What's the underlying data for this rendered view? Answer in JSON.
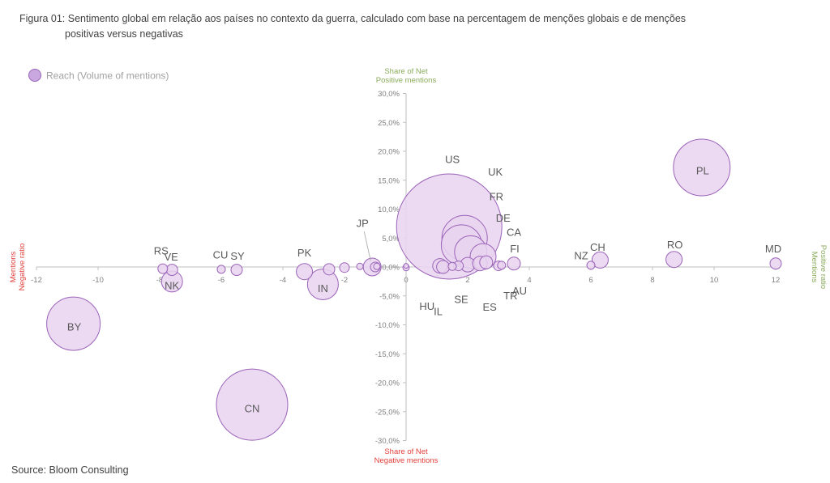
{
  "caption": {
    "line1": "Figura 01: Sentimento global em relação aos países no contexto da guerra, calculado com base na percentagem de menções globais e de menções",
    "line2": "positivas versus negativas"
  },
  "source": "Source: Bloom Consulting",
  "colors": {
    "bubble_fill": "#e9d3f0",
    "bubble_stroke": "#9a63b8",
    "axis": "#bfbfbf",
    "positive": "#8aab5b",
    "negative": "#e0403a"
  },
  "chart_data": {
    "type": "scatter",
    "legend": {
      "label": "Reach (Volume of mentions)",
      "placement": "top-left"
    },
    "axis_titles": {
      "top": [
        "Share of Net",
        "Positive mentions"
      ],
      "bottom": [
        "Share of Net",
        "Negative mentions"
      ],
      "left": [
        "Mentions",
        "Negative ratio"
      ],
      "right": [
        "Mentions",
        "Positive ratio"
      ]
    },
    "xlim": [
      -12,
      12
    ],
    "ylim": [
      -30,
      30
    ],
    "x_ticks": [
      -12,
      -10,
      -8,
      -6,
      -4,
      -2,
      0,
      2,
      4,
      6,
      8,
      10,
      12
    ],
    "x_tick_labels": [
      "-12",
      "-10",
      "-8",
      "-6",
      "-4",
      "-2",
      "0",
      "2",
      "4",
      "6",
      "8",
      "10",
      "12"
    ],
    "y_ticks": [
      30,
      25,
      20,
      15,
      10,
      5,
      0,
      -5,
      -10,
      -15,
      -20,
      -25,
      -30
    ],
    "y_tick_labels": [
      "30,0%",
      "25,0%",
      "20,0%",
      "15,0%",
      "10,0%",
      "5,0%",
      "0,0%",
      "-5,0%",
      "-10,0%",
      "-15,0%",
      "-20,0%",
      "-25,0%",
      "-30,0%"
    ],
    "points": [
      {
        "label": "US",
        "x": 1.4,
        "y": 7.0,
        "size": 65
      },
      {
        "label": "PL",
        "x": 9.6,
        "y": 17.2,
        "size": 35
      },
      {
        "label": "CN",
        "x": -5.0,
        "y": -23.8,
        "size": 44
      },
      {
        "label": "BY",
        "x": -10.8,
        "y": -9.8,
        "size": 33
      },
      {
        "label": "UK",
        "x": 1.9,
        "y": 5.0,
        "size": 28
      },
      {
        "label": "FR",
        "x": 1.8,
        "y": 3.8,
        "size": 25
      },
      {
        "label": "DE",
        "x": 2.1,
        "y": 2.6,
        "size": 20
      },
      {
        "label": "CA",
        "x": 2.5,
        "y": 1.8,
        "size": 16
      },
      {
        "label": "IN",
        "x": -2.7,
        "y": -3.0,
        "size": 19
      },
      {
        "label": "NK",
        "x": -7.6,
        "y": -2.5,
        "size": 13
      },
      {
        "label": "MD",
        "x": 12.0,
        "y": 0.6,
        "size": 7
      },
      {
        "label": "RO",
        "x": 8.7,
        "y": 1.3,
        "size": 10
      },
      {
        "label": "CH",
        "x": 6.3,
        "y": 1.2,
        "size": 10
      },
      {
        "label": "NZ",
        "x": 6.0,
        "y": 0.3,
        "size": 5
      },
      {
        "label": "FI",
        "x": 3.5,
        "y": 0.6,
        "size": 8
      },
      {
        "label": "PK",
        "x": -3.3,
        "y": -0.8,
        "size": 10
      },
      {
        "label": "JP",
        "x": -1.1,
        "y": 0.0,
        "size": 11
      },
      {
        "label": "CU",
        "x": -6.0,
        "y": -0.4,
        "size": 5
      },
      {
        "label": "SY",
        "x": -5.5,
        "y": -0.5,
        "size": 7
      },
      {
        "label": "RS",
        "x": -7.9,
        "y": -0.3,
        "size": 6
      },
      {
        "label": "VE",
        "x": -7.6,
        "y": -0.5,
        "size": 7
      },
      {
        "label": "HU",
        "x": 1.1,
        "y": 0.2,
        "size": 9
      },
      {
        "label": "IL",
        "x": 1.2,
        "y": 0.0,
        "size": 8
      },
      {
        "label": "SE",
        "x": 2.0,
        "y": 0.4,
        "size": 9
      },
      {
        "label": "ES",
        "x": 2.4,
        "y": 0.6,
        "size": 9
      },
      {
        "label": "TR",
        "x": 2.6,
        "y": 0.8,
        "size": 8
      },
      {
        "label": "AU",
        "x": 3.0,
        "y": 0.2,
        "size": 6
      },
      {
        "label": "",
        "x": -2.5,
        "y": -0.4,
        "size": 7
      },
      {
        "label": "",
        "x": -2.0,
        "y": -0.1,
        "size": 6
      },
      {
        "label": "",
        "x": -1.5,
        "y": 0.1,
        "size": 4
      },
      {
        "label": "",
        "x": -1.0,
        "y": 0.0,
        "size": 6
      },
      {
        "label": "",
        "x": -0.95,
        "y": 0.1,
        "size": 4
      },
      {
        "label": "",
        "x": 0.0,
        "y": -0.1,
        "size": 4
      },
      {
        "label": "",
        "x": 0.0,
        "y": 0.2,
        "size": 3
      },
      {
        "label": "",
        "x": 1.5,
        "y": 0.1,
        "size": 5
      },
      {
        "label": "",
        "x": 1.7,
        "y": 0.2,
        "size": 6
      },
      {
        "label": "",
        "x": 3.1,
        "y": 0.3,
        "size": 5
      }
    ]
  }
}
